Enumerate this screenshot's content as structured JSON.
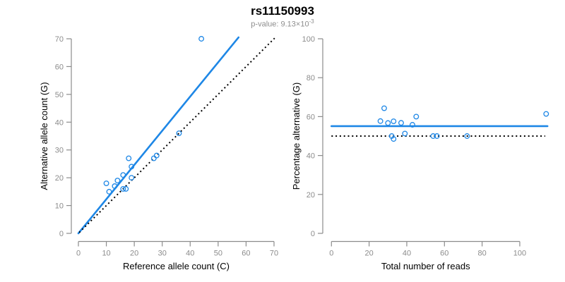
{
  "figure": {
    "title": "rs11150993",
    "p_value": {
      "prefix": "p-value: 9.13×10",
      "exponent": "-3"
    }
  },
  "colors": {
    "accent_blue": "#1E87E6",
    "dotted_black": "#000000",
    "axis_gray": "#8c8c8c",
    "tick_label_gray": "#8c8c8c",
    "title_black": "#000000",
    "subtitle_gray": "#8e8e8e"
  },
  "chart_data": [
    {
      "type": "scatter",
      "panel": "left",
      "xlabel": "Reference allele count (C)",
      "ylabel": "Alternative allele count (G)",
      "xlim": [
        0,
        70
      ],
      "ylim": [
        0,
        70
      ],
      "x_ticks": [
        0,
        10,
        20,
        30,
        40,
        50,
        60,
        70
      ],
      "y_ticks": [
        0,
        10,
        20,
        30,
        40,
        50,
        60,
        70
      ],
      "grid": false,
      "legend": false,
      "points": [
        [
          10,
          18
        ],
        [
          11,
          15
        ],
        [
          13,
          17
        ],
        [
          14,
          19
        ],
        [
          16,
          16
        ],
        [
          16,
          21
        ],
        [
          17,
          16
        ],
        [
          18,
          27
        ],
        [
          19,
          20
        ],
        [
          19,
          24
        ],
        [
          27,
          27
        ],
        [
          28,
          28
        ],
        [
          36,
          36
        ],
        [
          44,
          70
        ]
      ],
      "lines": [
        {
          "name": "fit-line",
          "style": "solid",
          "color_key": "accent_blue",
          "slope": 1.23,
          "from": [
            0,
            0
          ],
          "to": [
            57.3,
            70.5
          ]
        },
        {
          "name": "identity-line",
          "style": "dotted",
          "color_key": "dotted_black",
          "from": [
            0.3,
            0.3
          ],
          "to": [
            70.2,
            70.2
          ]
        }
      ]
    },
    {
      "type": "scatter",
      "panel": "right",
      "xlabel": "Total number of reads",
      "ylabel": "Percentage alternative (G)",
      "xlim": [
        0,
        114
      ],
      "ylim": [
        0,
        100
      ],
      "x_ticks": [
        0,
        20,
        40,
        60,
        80,
        100
      ],
      "y_ticks": [
        0,
        20,
        40,
        60,
        80,
        100
      ],
      "grid": false,
      "legend": false,
      "points": [
        [
          28,
          64.3
        ],
        [
          26,
          57.7
        ],
        [
          30,
          56.7
        ],
        [
          33,
          57.6
        ],
        [
          37,
          56.8
        ],
        [
          32,
          50
        ],
        [
          33,
          48.5
        ],
        [
          45,
          60
        ],
        [
          43,
          55.8
        ],
        [
          39,
          51.3
        ],
        [
          54,
          50
        ],
        [
          56,
          50
        ],
        [
          72,
          50
        ],
        [
          114,
          61.4
        ]
      ],
      "lines": [
        {
          "name": "mean-line",
          "style": "solid",
          "color_key": "accent_blue",
          "value": 55.1,
          "from": [
            0,
            55.1
          ],
          "to": [
            114.7,
            55.1
          ]
        },
        {
          "name": "reference-line",
          "style": "dotted",
          "color_key": "dotted_black",
          "value": 50,
          "from": [
            0,
            50
          ],
          "to": [
            113.5,
            50
          ]
        }
      ]
    }
  ]
}
